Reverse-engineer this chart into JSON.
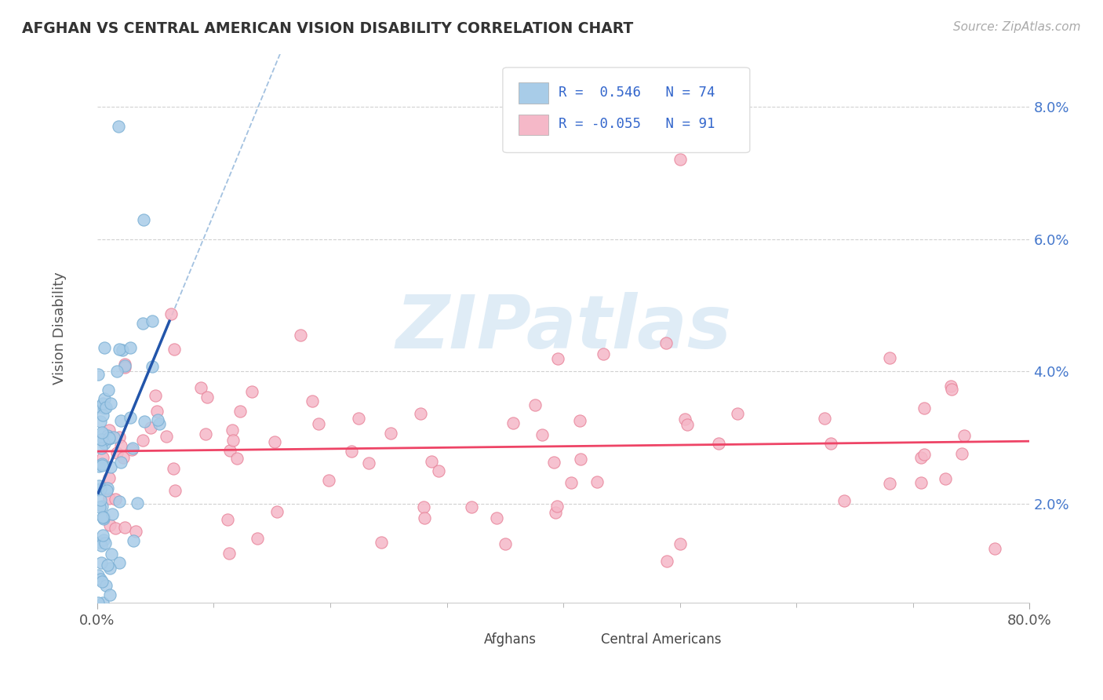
{
  "title": "AFGHAN VS CENTRAL AMERICAN VISION DISABILITY CORRELATION CHART",
  "source": "Source: ZipAtlas.com",
  "ylabel": "Vision Disability",
  "legend_afghans": "Afghans",
  "legend_central": "Central Americans",
  "afghan_R": 0.546,
  "afghan_N": 74,
  "central_R": -0.055,
  "central_N": 91,
  "afghan_color": "#a8cce8",
  "afghan_color_edge": "#7aafd4",
  "central_color": "#f5b8c8",
  "central_color_edge": "#e8849a",
  "trendline_afghan_color": "#2255aa",
  "trendline_central_color": "#ee4466",
  "dash_color": "#99bbdd",
  "background_color": "#ffffff",
  "grid_color": "#cccccc",
  "ytick_color": "#4477cc",
  "xtick_color": "#555555",
  "ylabel_color": "#555555",
  "watermark": "ZIPatlas",
  "watermark_color": "#c5ddf0",
  "title_color": "#333333",
  "source_color": "#aaaaaa"
}
